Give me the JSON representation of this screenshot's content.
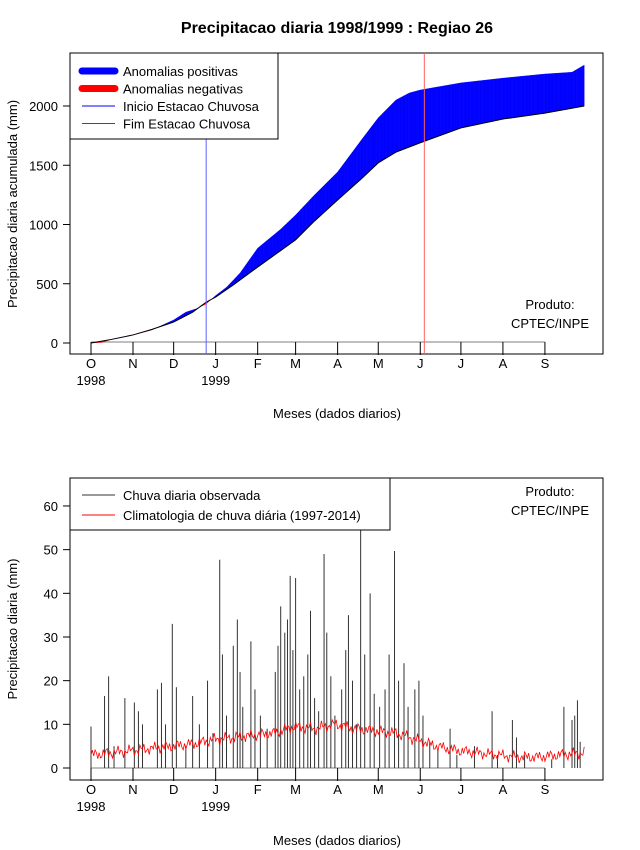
{
  "chart_data": [
    {
      "type": "area",
      "title": "Precipitacao diaria 1998/1999 : Regiao 26",
      "xlabel": "Meses (dados diarios)",
      "ylabel": "Precipitacao diaria acumulada (mm)",
      "ylim": [
        0,
        2350
      ],
      "yticks": [
        0,
        500,
        1000,
        1500,
        2000
      ],
      "month_ticks": [
        {
          "day": 0,
          "label": "O"
        },
        {
          "day": 31,
          "label": "N"
        },
        {
          "day": 61,
          "label": "D"
        },
        {
          "day": 92,
          "label": "J"
        },
        {
          "day": 123,
          "label": "F"
        },
        {
          "day": 151,
          "label": "M"
        },
        {
          "day": 182,
          "label": "A"
        },
        {
          "day": 212,
          "label": "M"
        },
        {
          "day": 243,
          "label": "J"
        },
        {
          "day": 273,
          "label": "J"
        },
        {
          "day": 304,
          "label": "A"
        },
        {
          "day": 335,
          "label": "S"
        }
      ],
      "year_labels": [
        {
          "day": 0,
          "label": "1998"
        },
        {
          "day": 92,
          "label": "1999"
        }
      ],
      "observed_cumulative": [
        [
          0,
          0
        ],
        [
          8,
          5
        ],
        [
          15,
          30
        ],
        [
          31,
          68
        ],
        [
          45,
          110
        ],
        [
          61,
          194
        ],
        [
          70,
          260
        ],
        [
          78,
          290
        ],
        [
          85,
          330
        ],
        [
          92,
          400
        ],
        [
          100,
          470
        ],
        [
          110,
          590
        ],
        [
          123,
          800
        ],
        [
          140,
          960
        ],
        [
          151,
          1080
        ],
        [
          165,
          1250
        ],
        [
          182,
          1443
        ],
        [
          200,
          1720
        ],
        [
          212,
          1900
        ],
        [
          225,
          2050
        ],
        [
          235,
          2110
        ],
        [
          243,
          2135
        ],
        [
          273,
          2195
        ],
        [
          304,
          2235
        ],
        [
          335,
          2270
        ],
        [
          355,
          2285
        ],
        [
          364,
          2345
        ]
      ],
      "climatology_cumulative": [
        [
          0,
          0
        ],
        [
          15,
          30
        ],
        [
          31,
          68
        ],
        [
          45,
          115
        ],
        [
          61,
          177
        ],
        [
          75,
          260
        ],
        [
          85,
          345
        ],
        [
          92,
          388
        ],
        [
          105,
          490
        ],
        [
          123,
          641
        ],
        [
          140,
          780
        ],
        [
          151,
          870
        ],
        [
          165,
          1030
        ],
        [
          182,
          1207
        ],
        [
          200,
          1390
        ],
        [
          212,
          1520
        ],
        [
          225,
          1610
        ],
        [
          243,
          1690
        ],
        [
          273,
          1815
        ],
        [
          304,
          1890
        ],
        [
          335,
          1940
        ],
        [
          364,
          2000
        ]
      ],
      "rainy_season_start_day": 85,
      "rainy_season_end_day": 246,
      "legend": {
        "placement": "top-left",
        "entries": [
          {
            "label": "Anomalias positivas",
            "color": "#0000ff",
            "kind": "fill"
          },
          {
            "label": "Anomalias negativas",
            "color": "#ff0000",
            "kind": "fill"
          },
          {
            "label": "Inicio Estacao Chuvosa",
            "color": "#0000ff",
            "kind": "line"
          },
          {
            "label": "Fim Estacao Chuvosa",
            "color": "#ff0000",
            "kind": "line"
          }
        ]
      },
      "annotation": [
        "Produto:",
        "CPTEC/INPE"
      ]
    },
    {
      "type": "bar",
      "xlabel": "Meses (dados diarios)",
      "ylabel": "Precipitacao diaria (mm)",
      "ylim": [
        0,
        64
      ],
      "yticks": [
        0,
        10,
        20,
        30,
        40,
        50,
        60
      ],
      "observed_daily_peaks": [
        [
          0,
          9.5
        ],
        [
          10,
          16.5
        ],
        [
          13,
          21
        ],
        [
          17,
          5
        ],
        [
          25,
          16
        ],
        [
          32,
          15
        ],
        [
          35,
          13
        ],
        [
          38,
          10
        ],
        [
          49,
          18
        ],
        [
          52,
          19.5
        ],
        [
          55,
          10
        ],
        [
          60,
          33
        ],
        [
          63,
          18.5
        ],
        [
          70,
          5
        ],
        [
          75,
          16.5
        ],
        [
          80,
          10
        ],
        [
          86,
          20
        ],
        [
          90,
          8
        ],
        [
          95,
          47.7
        ],
        [
          97,
          26
        ],
        [
          100,
          12
        ],
        [
          105,
          28
        ],
        [
          108,
          34
        ],
        [
          110,
          22
        ],
        [
          112,
          14
        ],
        [
          118,
          29
        ],
        [
          121,
          18
        ],
        [
          125,
          12
        ],
        [
          130,
          9
        ],
        [
          136,
          22
        ],
        [
          138,
          28
        ],
        [
          140,
          37
        ],
        [
          143,
          31
        ],
        [
          145,
          34
        ],
        [
          147,
          44
        ],
        [
          149,
          27
        ],
        [
          151,
          43.5
        ],
        [
          154,
          18
        ],
        [
          157,
          21
        ],
        [
          160,
          26
        ],
        [
          162,
          36
        ],
        [
          165,
          16
        ],
        [
          168,
          13
        ],
        [
          172,
          49
        ],
        [
          174,
          31
        ],
        [
          177,
          21
        ],
        [
          180,
          12
        ],
        [
          185,
          18
        ],
        [
          188,
          27
        ],
        [
          190,
          35
        ],
        [
          193,
          20
        ],
        [
          196,
          10
        ],
        [
          199,
          64
        ],
        [
          202,
          26
        ],
        [
          206,
          40
        ],
        [
          209,
          17
        ],
        [
          213,
          14
        ],
        [
          217,
          18
        ],
        [
          220,
          26
        ],
        [
          224,
          49.7
        ],
        [
          227,
          20
        ],
        [
          231,
          24
        ],
        [
          234,
          14
        ],
        [
          239,
          18
        ],
        [
          242,
          20
        ],
        [
          245,
          12
        ],
        [
          250,
          6
        ],
        [
          256,
          4
        ],
        [
          265,
          9
        ],
        [
          270,
          3
        ],
        [
          283,
          5
        ],
        [
          296,
          13
        ],
        [
          300,
          3
        ],
        [
          311,
          11
        ],
        [
          314,
          7
        ],
        [
          320,
          3
        ],
        [
          340,
          2
        ],
        [
          349,
          14
        ],
        [
          355,
          11
        ],
        [
          357,
          12
        ],
        [
          359,
          15.5
        ],
        [
          361,
          6
        ]
      ],
      "climatology_daily": [
        [
          0,
          3
        ],
        [
          15,
          3.5
        ],
        [
          30,
          4
        ],
        [
          45,
          4.5
        ],
        [
          60,
          5
        ],
        [
          75,
          5.5
        ],
        [
          90,
          6.5
        ],
        [
          105,
          7
        ],
        [
          120,
          7.5
        ],
        [
          135,
          8
        ],
        [
          150,
          9.5
        ],
        [
          165,
          9
        ],
        [
          180,
          10
        ],
        [
          195,
          9
        ],
        [
          210,
          8.5
        ],
        [
          225,
          8
        ],
        [
          240,
          6.5
        ],
        [
          255,
          5
        ],
        [
          270,
          4
        ],
        [
          285,
          3.5
        ],
        [
          300,
          3
        ],
        [
          315,
          2.5
        ],
        [
          330,
          2.5
        ],
        [
          345,
          3
        ],
        [
          364,
          3.5
        ]
      ],
      "month_ticks_ref": 0,
      "legend": {
        "placement": "top-left",
        "entries": [
          {
            "label": "Chuva diaria observada",
            "color": "#333333"
          },
          {
            "label": "Climatologia de chuva diária (1997-2014)",
            "color": "#ff0000"
          }
        ]
      },
      "annotation": [
        "Produto:",
        "CPTEC/INPE"
      ]
    }
  ]
}
